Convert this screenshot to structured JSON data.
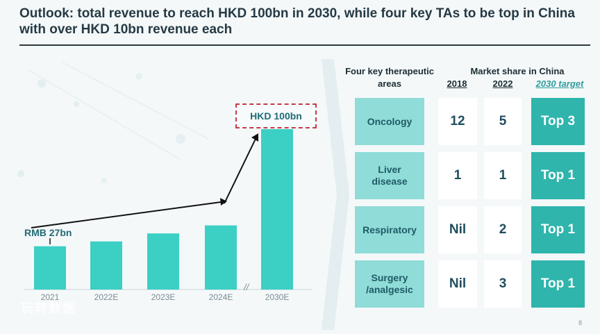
{
  "slide": {
    "title": "Outlook: total revenue to reach HKD 100bn in 2030, while four key TAs to be top in China with over HKD 10bn revenue each",
    "page_number": "8",
    "watermark": "玩转数据"
  },
  "revenue_chart": {
    "start_label": "RMB 27bn",
    "target_label": "HKD 100bn",
    "axis_break": "//"
  },
  "chart_data": {
    "type": "bar",
    "categories": [
      "2021",
      "2022E",
      "2023E",
      "2024E",
      "2030E"
    ],
    "values": [
      27,
      30,
      35,
      40,
      100
    ],
    "title": "",
    "xlabel": "",
    "ylabel": "",
    "ylim": [
      0,
      100
    ],
    "grid": false,
    "annotations": [
      "RMB 27bn",
      "HKD 100bn"
    ],
    "color": "#3ccfc4"
  },
  "market_table": {
    "header_ta": "Four key therapeutic areas",
    "header_share": "Market share in China",
    "col_2018": "2018",
    "col_2022": "2022",
    "col_target": "2030 target",
    "rows": [
      {
        "ta": "Oncology",
        "y2018": "12",
        "y2022": "5",
        "target": "Top 3"
      },
      {
        "ta": "Liver disease",
        "y2018": "1",
        "y2022": "1",
        "target": "Top 1"
      },
      {
        "ta": "Respiratory",
        "y2018": "Nil",
        "y2022": "2",
        "target": "Top 1"
      },
      {
        "ta": "Surgery /analgesic",
        "y2018": "Nil",
        "y2022": "3",
        "target": "Top 1"
      }
    ]
  },
  "colors": {
    "bar": "#3ccfc4",
    "ta_cell": "#8fdcd8",
    "target_cell": "#2fb5ac",
    "target_border": "#c63a48"
  }
}
